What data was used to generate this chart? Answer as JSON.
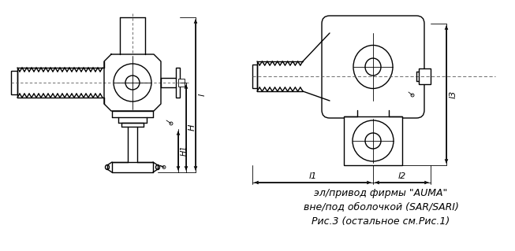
{
  "bg_color": "#ffffff",
  "line_color": "#000000",
  "text_color": "#000000",
  "caption_lines": [
    "эл/привод фирмы \"AUMA\"",
    "вне/под оболочкой (SAR/SARI)",
    "Рис.3 (остальное см.Рис.1)"
  ],
  "figsize": [
    6.53,
    3.19
  ],
  "dpi": 100
}
